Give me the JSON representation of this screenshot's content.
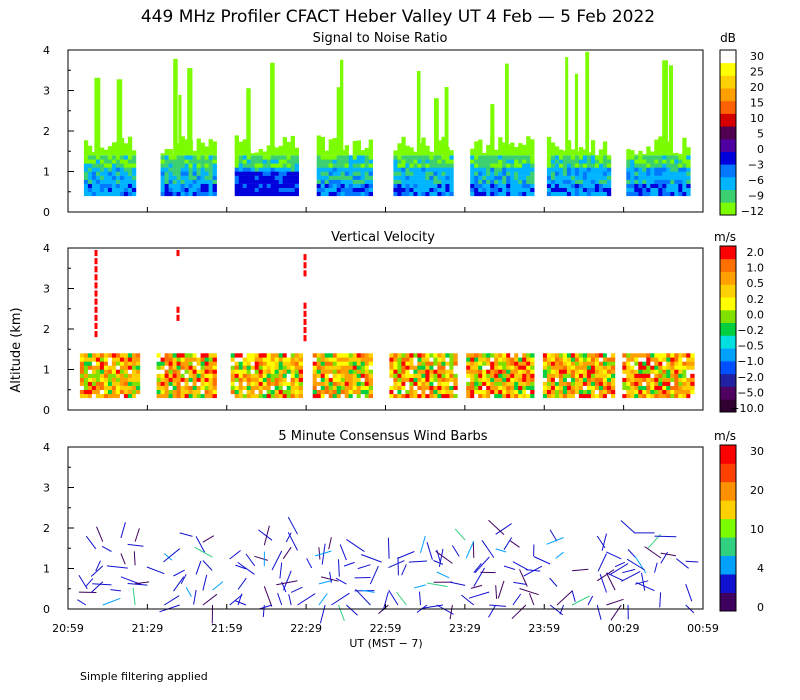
{
  "title": "449 MHz Profiler CFACT Heber Valley UT  4 Feb —  5 Feb 2022",
  "footnote": "Simple filtering applied",
  "colors": {
    "snr_scale": [
      "#7cfc00",
      "#3cd070",
      "#00b4ff",
      "#0078ff",
      "#0000dd",
      "#5000a0",
      "#500050",
      "#d40000",
      "#ff6000",
      "#ffa000",
      "#ffd000",
      "#ffff00",
      "#ffffff"
    ],
    "vel_scale": [
      "#300030",
      "#500060",
      "#2020a0",
      "#0050ff",
      "#00a0ff",
      "#00e0e0",
      "#00d040",
      "#80e000",
      "#ffff00",
      "#ffd000",
      "#ffa000",
      "#ff7000",
      "#ff0000"
    ],
    "wind_scale": [
      "#400060",
      "#1010d0",
      "#00a0ff",
      "#30d080",
      "#7cfc00",
      "#ffd000",
      "#ff9000",
      "#ff4000",
      "#ff0000"
    ]
  },
  "chart_data": [
    {
      "type": "heatmap",
      "title": "Signal to Noise Ratio",
      "ylabel": "",
      "xlabel": "",
      "ylim": [
        0,
        4
      ],
      "yticks": [
        "4",
        "3",
        "2",
        "1",
        "0"
      ],
      "colorbar_unit": "dB",
      "colorbar_ticks": [
        "30",
        "25",
        "20",
        "15",
        "10",
        "5",
        "0",
        "−3",
        "−6",
        "−9",
        "−12"
      ],
      "x_range": [
        "20:59",
        "00:59"
      ],
      "time_blocks": [
        {
          "start": "21:05",
          "end": "21:24"
        },
        {
          "start": "21:34",
          "end": "21:54"
        },
        {
          "start": "22:02",
          "end": "22:26"
        },
        {
          "start": "22:33",
          "end": "22:53"
        },
        {
          "start": "23:02",
          "end": "23:24"
        },
        {
          "start": "23:31",
          "end": "23:54"
        },
        {
          "start": "24:00",
          "end": "24:24"
        },
        {
          "start": "24:30",
          "end": "24:54"
        }
      ],
      "layer_top_km": 1.4,
      "spike_top_km": 4.0
    },
    {
      "type": "heatmap",
      "title": "Vertical Velocity",
      "ylabel": "Altitude (km)",
      "xlabel": "",
      "ylim": [
        0,
        4
      ],
      "yticks": [
        "4",
        "3",
        "2",
        "1",
        "0"
      ],
      "colorbar_unit": "m/s",
      "colorbar_ticks": [
        "2.0",
        "1.0",
        "0.5",
        "0.2",
        "0.0",
        "−0.2",
        "−0.5",
        "−1.0",
        "−2.0",
        "−5.0",
        "−10.0"
      ],
      "layer_top_km": 1.4,
      "red_streaks_km": [
        [
          1.8,
          4.0
        ],
        [
          2.2,
          4.0
        ],
        [
          1.7,
          3.8
        ]
      ]
    },
    {
      "type": "wind_barbs",
      "title": "5 Minute Consensus Wind Barbs",
      "ylabel": "",
      "xlabel": "UT  (MST − 7)",
      "ylim": [
        0,
        4
      ],
      "yticks": [
        "4",
        "3",
        "2",
        "1",
        "0"
      ],
      "xticks": [
        "20:59",
        "21:29",
        "21:59",
        "22:29",
        "22:59",
        "23:29",
        "23:59",
        "00:29",
        "00:59"
      ],
      "colorbar_unit": "m/s",
      "colorbar_ticks": [
        "30",
        "20",
        "10",
        "4",
        "0"
      ],
      "barb_max_alt_km": 1.9,
      "typical_speed_ms": "0–4"
    }
  ]
}
